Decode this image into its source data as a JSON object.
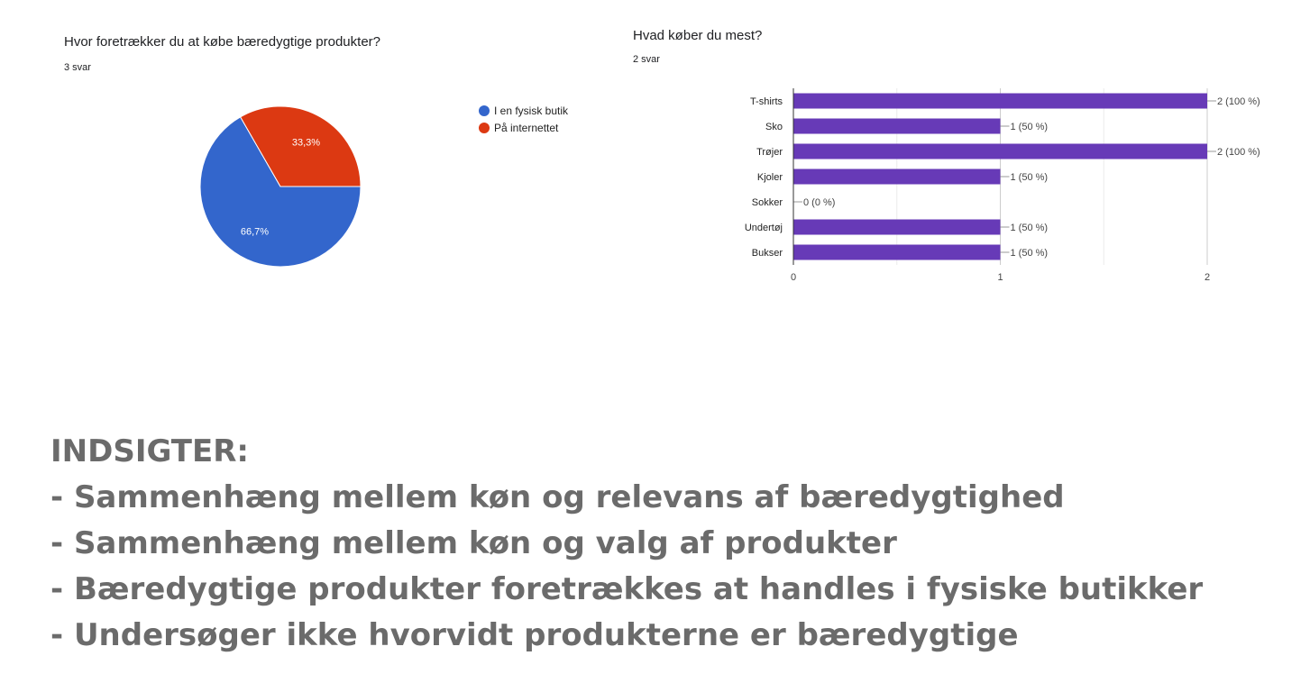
{
  "chart_data": [
    {
      "type": "pie",
      "title": "Hvor foretrækker du at købe bæredygtige produkter?",
      "subtitle": "3 svar",
      "legend_position": "right",
      "slices": [
        {
          "label": "I en fysisk butik",
          "value": 66.7,
          "display": "66,7%",
          "color": "#3366cc"
        },
        {
          "label": "På internettet",
          "value": 33.3,
          "display": "33,3%",
          "color": "#dc3912"
        }
      ]
    },
    {
      "type": "bar",
      "orientation": "horizontal",
      "title": "Hvad køber du mest?",
      "subtitle": "2 svar",
      "categories": [
        "T-shirts",
        "Sko",
        "Trøjer",
        "Kjoler",
        "Sokker",
        "Undertøj",
        "Bukser"
      ],
      "values": [
        2,
        1,
        2,
        1,
        0,
        1,
        1
      ],
      "data_labels": [
        "2 (100 %)",
        "1 (50 %)",
        "2 (100 %)",
        "1 (50 %)",
        "0 (0 %)",
        "1 (50 %)",
        "1 (50 %)"
      ],
      "xlim": [
        0,
        2
      ],
      "xticks": [
        "0",
        "1",
        "2"
      ],
      "grid": true,
      "color": "#673ab7"
    }
  ],
  "insights": {
    "heading": "INDSIGTER:",
    "items": [
      "- Sammenhæng mellem køn og relevans af bæredygtighed",
      "- Sammenhæng mellem køn og valg af produkter",
      "- Bæredygtige produkter foretrækkes at handles i fysiske butikker",
      "- Undersøger ikke hvorvidt produkterne er bæredygtige"
    ]
  }
}
